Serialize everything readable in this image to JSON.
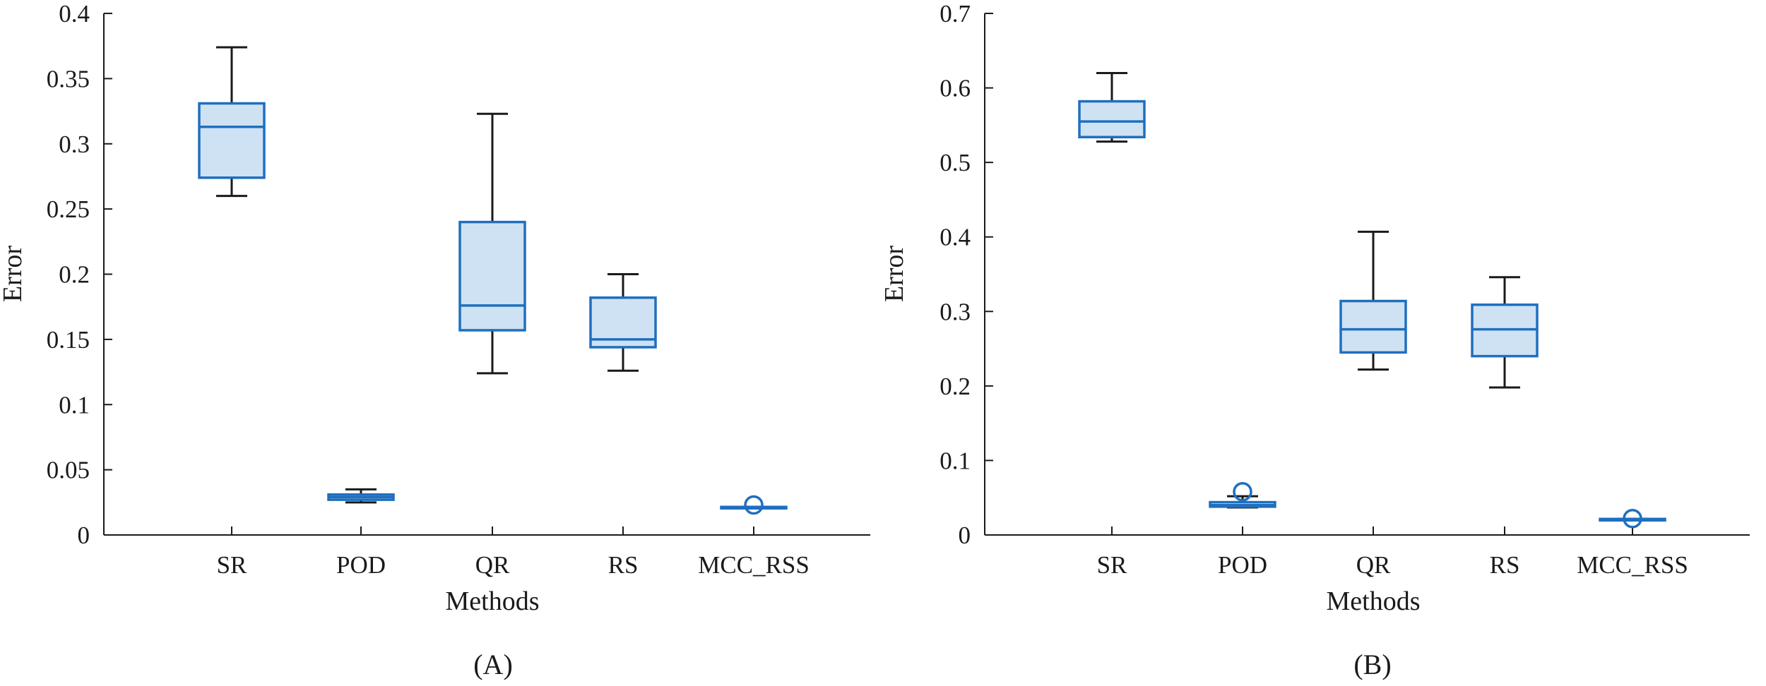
{
  "figure": {
    "panel_labels": [
      "(A)",
      "(B)"
    ]
  },
  "colors": {
    "box_edge": "#1f6fbf",
    "box_fill": "#cfe2f3",
    "whisker": "#1a1a1a",
    "axis": "#1a1a1a"
  },
  "chart_data": [
    {
      "type": "box",
      "panel": "(A)",
      "xlabel": "Methods",
      "ylabel": "Error",
      "ylim": [
        0,
        0.4
      ],
      "yticks": [
        0,
        0.05,
        0.1,
        0.15,
        0.2,
        0.25,
        0.3,
        0.35,
        0.4
      ],
      "ytick_labels": [
        "0",
        "0.05",
        "0.1",
        "0.15",
        "0.2",
        "0.25",
        "0.3",
        "0.35",
        "0.4"
      ],
      "categories": [
        "SR",
        "POD",
        "QR",
        "RS",
        "MCC_RSS"
      ],
      "boxes": [
        {
          "label": "SR",
          "min": 0.26,
          "q1": 0.274,
          "median": 0.313,
          "q3": 0.331,
          "max": 0.374,
          "outliers": []
        },
        {
          "label": "POD",
          "min": 0.025,
          "q1": 0.027,
          "median": 0.029,
          "q3": 0.031,
          "max": 0.035,
          "outliers": []
        },
        {
          "label": "QR",
          "min": 0.124,
          "q1": 0.157,
          "median": 0.176,
          "q3": 0.24,
          "max": 0.323,
          "outliers": []
        },
        {
          "label": "RS",
          "min": 0.126,
          "q1": 0.144,
          "median": 0.15,
          "q3": 0.182,
          "max": 0.2,
          "outliers": []
        },
        {
          "label": "MCC_RSS",
          "min": 0.0205,
          "q1": 0.0205,
          "median": 0.021,
          "q3": 0.0215,
          "max": 0.0215,
          "outliers": [
            0.023
          ]
        }
      ]
    },
    {
      "type": "box",
      "panel": "(B)",
      "xlabel": "Methods",
      "ylabel": "Error",
      "ylim": [
        0,
        0.7
      ],
      "yticks": [
        0,
        0.1,
        0.2,
        0.3,
        0.4,
        0.5,
        0.6,
        0.7
      ],
      "ytick_labels": [
        "0",
        "0.1",
        "0.2",
        "0.3",
        "0.4",
        "0.5",
        "0.6",
        "0.7"
      ],
      "categories": [
        "SR",
        "POD",
        "QR",
        "RS",
        "MCC_RSS"
      ],
      "boxes": [
        {
          "label": "SR",
          "min": 0.528,
          "q1": 0.534,
          "median": 0.555,
          "q3": 0.582,
          "max": 0.62,
          "outliers": []
        },
        {
          "label": "POD",
          "min": 0.037,
          "q1": 0.038,
          "median": 0.04,
          "q3": 0.044,
          "max": 0.052,
          "outliers": [
            0.058
          ]
        },
        {
          "label": "QR",
          "min": 0.222,
          "q1": 0.245,
          "median": 0.276,
          "q3": 0.314,
          "max": 0.407,
          "outliers": []
        },
        {
          "label": "RS",
          "min": 0.198,
          "q1": 0.24,
          "median": 0.276,
          "q3": 0.309,
          "max": 0.346,
          "outliers": []
        },
        {
          "label": "MCC_RSS",
          "min": 0.0205,
          "q1": 0.0205,
          "median": 0.021,
          "q3": 0.0215,
          "max": 0.0215,
          "outliers": [
            0.022
          ]
        }
      ]
    }
  ]
}
